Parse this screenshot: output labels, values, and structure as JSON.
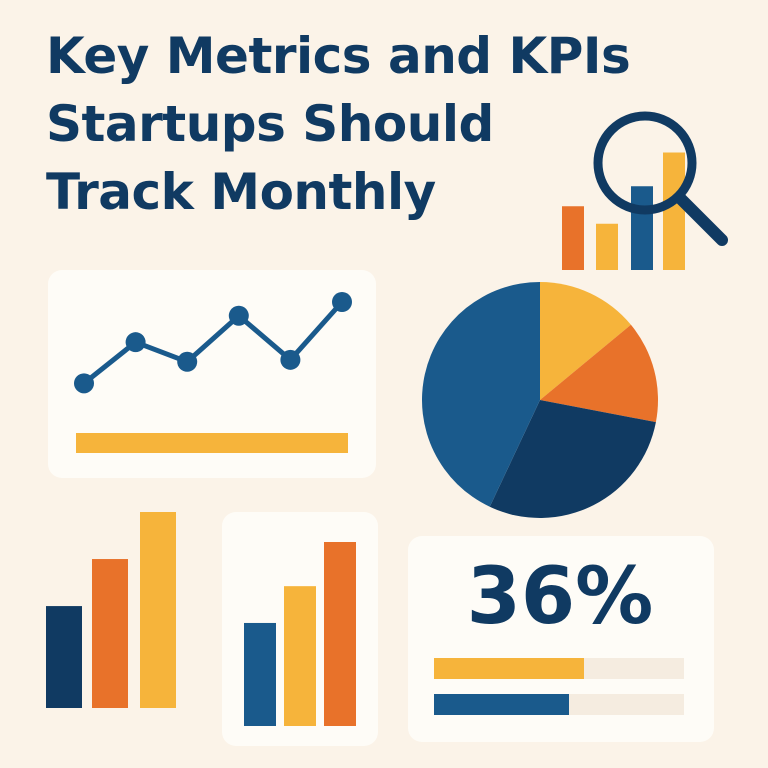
{
  "title": {
    "line1": "Key Metrics and KPIs",
    "line2": "Startups Should",
    "line3": "Track Monthly"
  },
  "icons": {
    "magnifier": "magnifying-glass-icon",
    "mini_chart": "bar-chart-icon"
  },
  "colors": {
    "navy": "#103a62",
    "blue": "#1a5a8c",
    "orange": "#e8722a",
    "yellow": "#f6b43b",
    "background": "#fbf3e8",
    "card": "#fefcf7"
  },
  "chart_data": [
    {
      "type": "bar",
      "name": "top-right-mini-bars",
      "values": [
        0.51,
        0.37,
        0.67,
        0.94
      ],
      "colors": [
        "#e8722a",
        "#f6b43b",
        "#1a5a8c",
        "#f6b43b"
      ]
    },
    {
      "type": "line",
      "name": "line-card",
      "values": [
        0.17,
        0.59,
        0.39,
        0.86,
        0.41,
        1.0
      ],
      "underline_fill": 1.0
    },
    {
      "type": "pie",
      "name": "pie",
      "slices": [
        {
          "value": 14,
          "color": "#f6b43b"
        },
        {
          "value": 14,
          "color": "#e8722a"
        },
        {
          "value": 29,
          "color": "#103a62"
        },
        {
          "value": 43,
          "color": "#1a5a8c"
        }
      ]
    },
    {
      "type": "bar",
      "name": "bottom-left-bars",
      "values": [
        0.52,
        0.76,
        1.0
      ],
      "colors": [
        "#103a62",
        "#e8722a",
        "#f6b43b"
      ]
    },
    {
      "type": "bar",
      "name": "bottom-middle-bars",
      "values": [
        0.56,
        0.76,
        1.0
      ],
      "colors": [
        "#1a5a8c",
        "#f6b43b",
        "#e8722a"
      ]
    }
  ],
  "kpi": {
    "value": "36%",
    "bars": [
      {
        "fill": 0.6,
        "color": "#f6b43b"
      },
      {
        "fill": 0.54,
        "color": "#1a5a8c"
      }
    ]
  }
}
